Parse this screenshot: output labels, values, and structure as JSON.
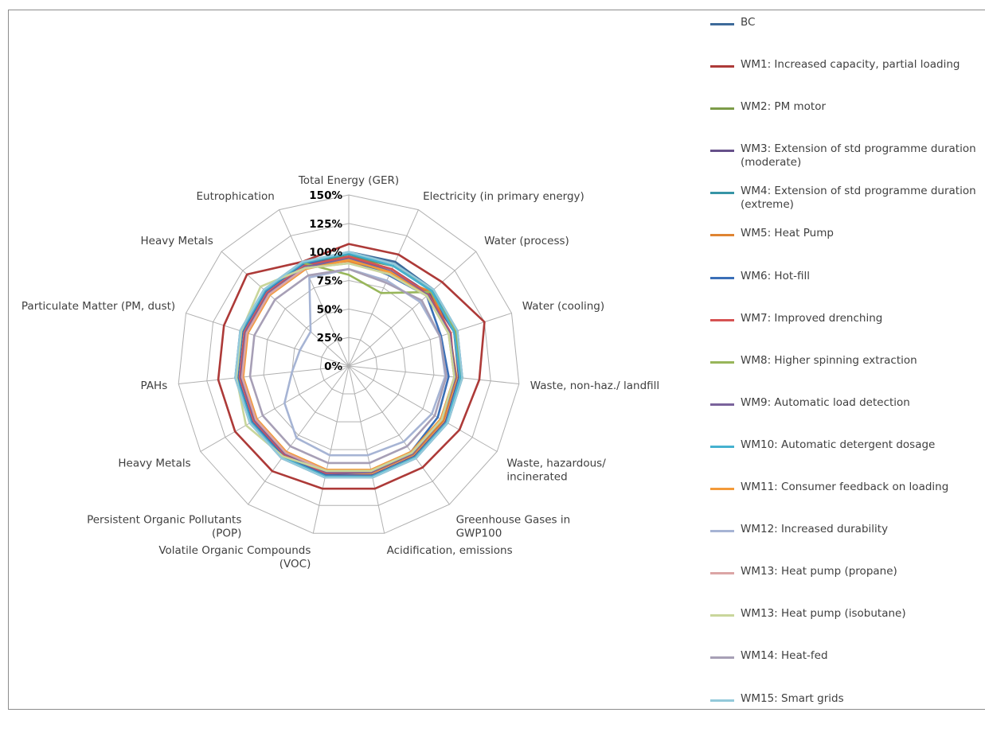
{
  "chart_data": {
    "type": "radar",
    "title": "",
    "axes": [
      "Total Energy (GER)",
      "Electricity (in primary energy)",
      "Water (process)",
      "Water (cooling)",
      "Waste, non-haz./ landfill",
      "Waste, hazardous/\nincinerated",
      "Greenhouse Gases in\nGWP100",
      "Acidification, emissions",
      "Volatile Organic Compounds\n(VOC)",
      "Persistent Organic Pollutants\n(POP)",
      "Heavy Metals",
      "PAHs",
      "Particulate Matter (PM, dust)",
      "Heavy Metals",
      "Eutrophication"
    ],
    "ticks": [
      "0%",
      "25%",
      "50%",
      "75%",
      "100%",
      "125%",
      "150%"
    ],
    "rlim": [
      0,
      150
    ],
    "grid": true,
    "legend_position": "right",
    "series": [
      {
        "name": "BC",
        "color": "#3d6a9a",
        "values": [
          100,
          100,
          100,
          100,
          100,
          100,
          100,
          100,
          100,
          100,
          100,
          100,
          100,
          100,
          100
        ]
      },
      {
        "name": "WM1: Increased capacity, partial loading",
        "color": "#ad3a38",
        "values": [
          107,
          107,
          110,
          125,
          115,
          112,
          110,
          110,
          110,
          114,
          115,
          115,
          115,
          120,
          100
        ]
      },
      {
        "name": "WM2: PM motor",
        "color": "#7c9c48",
        "values": [
          96,
          96,
          99,
          98,
          98,
          99,
          99,
          99,
          99,
          99,
          99,
          99,
          99,
          99,
          99
        ]
      },
      {
        "name": "WM3: Extension of std programme duration\n(moderate)",
        "color": "#66508a",
        "values": [
          95,
          93,
          95,
          97,
          97,
          98,
          98,
          98,
          98,
          98,
          98,
          98,
          98,
          98,
          98
        ]
      },
      {
        "name": "WM4: Extension of std programme duration\n(extreme)",
        "color": "#3795a6",
        "values": [
          98,
          96,
          98,
          100,
          99,
          99,
          99,
          99,
          99,
          99,
          99,
          99,
          99,
          99,
          99
        ]
      },
      {
        "name": "WM5: Heat Pump",
        "color": "#df8432",
        "values": [
          92,
          88,
          97,
          93,
          95,
          96,
          96,
          96,
          96,
          96,
          96,
          96,
          96,
          96,
          96
        ]
      },
      {
        "name": "WM6: Hot-fill",
        "color": "#3a6fb7",
        "values": [
          94,
          87,
          92,
          85,
          88,
          90,
          93,
          95,
          97,
          97,
          98,
          98,
          98,
          98,
          98
        ]
      },
      {
        "name": "WM7: Improved drenching",
        "color": "#d65353",
        "values": [
          96,
          93,
          94,
          94,
          93,
          94,
          95,
          95,
          96,
          96,
          96,
          96,
          96,
          96,
          96
        ]
      },
      {
        "name": "WM8: Higher spinning extraction",
        "color": "#98b65a",
        "values": [
          80,
          70,
          97,
          99,
          100,
          99,
          99,
          99,
          99,
          99,
          99,
          99,
          99,
          99,
          99
        ]
      },
      {
        "name": "WM9: Automatic load detection",
        "color": "#7a639c",
        "values": [
          94,
          91,
          93,
          93,
          94,
          94,
          95,
          95,
          95,
          95,
          95,
          95,
          95,
          95,
          95
        ]
      },
      {
        "name": "WM10: Automatic detergent dosage",
        "color": "#45b1cf",
        "values": [
          99,
          96,
          98,
          97,
          98,
          99,
          99,
          99,
          99,
          99,
          99,
          99,
          99,
          99,
          99
        ]
      },
      {
        "name": "WM11: Consumer feedback on loading",
        "color": "#f39a39",
        "values": [
          93,
          90,
          92,
          92,
          93,
          93,
          93,
          93,
          93,
          93,
          93,
          93,
          93,
          93,
          93
        ]
      },
      {
        "name": "WM12: Increased durability",
        "color": "#a6b4d4",
        "values": [
          85,
          82,
          84,
          84,
          85,
          84,
          82,
          80,
          80,
          78,
          65,
          50,
          45,
          45,
          85
        ]
      },
      {
        "name": "WM13: Heat pump (propane)",
        "color": "#dba5a5",
        "values": [
          90,
          88,
          92,
          92,
          93,
          94,
          94,
          94,
          94,
          94,
          94,
          94,
          94,
          94,
          94
        ]
      },
      {
        "name": "WM13: Heat pump (isobutane)",
        "color": "#c9d69b",
        "values": [
          90,
          88,
          92,
          92,
          93,
          94,
          94,
          94,
          94,
          98,
          104,
          99,
          99,
          104,
          94
        ]
      },
      {
        "name": "WM14: Heat-fed",
        "color": "#a79fb6",
        "values": [
          85,
          80,
          86,
          84,
          86,
          87,
          87,
          87,
          87,
          87,
          87,
          87,
          87,
          87,
          87
        ]
      },
      {
        "name": "WM15: Smart grids",
        "color": "#93c9da",
        "values": [
          100,
          98,
          100,
          100,
          100,
          100,
          100,
          100,
          100,
          100,
          100,
          100,
          100,
          100,
          100
        ]
      }
    ]
  }
}
